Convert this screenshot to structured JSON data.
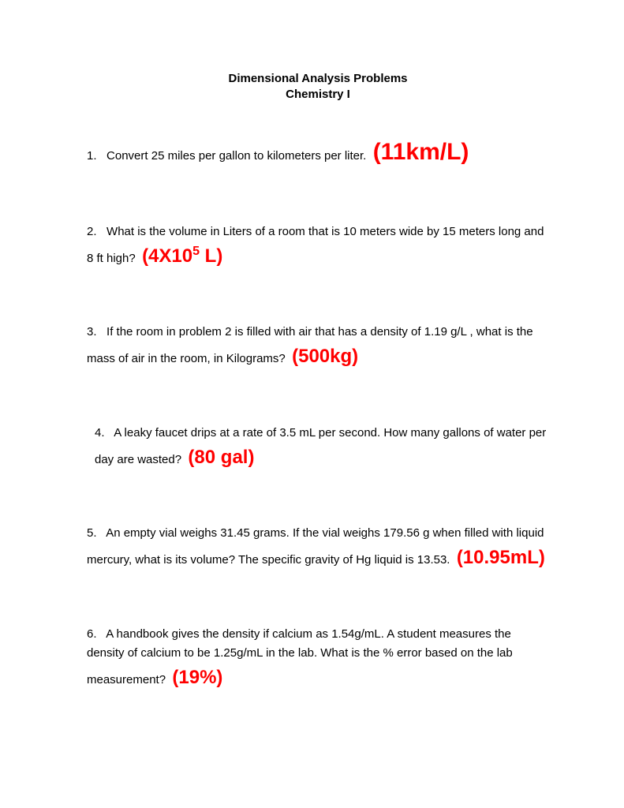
{
  "title_line1": "Dimensional Analysis Problems",
  "title_line2": "Chemistry I",
  "problems": {
    "p1": {
      "num": "1.",
      "text": "Convert 25 miles per gallon to kilometers per liter.",
      "answer": "(11km/L)"
    },
    "p2": {
      "num": "2.",
      "text_a": "What is the volume in Liters of a room that is 10 meters wide by 15 meters long and 8 ft high?",
      "answer_pre": "(4X10",
      "answer_sup": "5",
      "answer_post": " L)"
    },
    "p3": {
      "num": "3.",
      "text": "If the room in problem 2 is filled with air that has a density of 1.19 g/L , what is the mass of air in the room, in Kilograms?",
      "answer": "(500kg)"
    },
    "p4": {
      "num": "4.",
      "text": "A leaky faucet drips at a rate of 3.5 mL per second.  How many gallons of water per day are wasted?",
      "answer": "(80 gal)"
    },
    "p5": {
      "num": "5.",
      "text": "An empty vial weighs 31.45 grams.   If the vial weighs 179.56 g when filled with liquid mercury, what is its volume?   The specific gravity of Hg liquid is 13.53.",
      "answer": "(10.95mL)"
    },
    "p6": {
      "num": "6.",
      "text": "A handbook gives the density if calcium as 1.54g/mL.   A student measures the density of calcium to be 1.25g/mL in the lab.   What is the % error based on the lab measurement?",
      "answer": "(19%)"
    }
  },
  "colors": {
    "text": "#000000",
    "answer": "#ff0000",
    "background": "#ffffff"
  },
  "typography": {
    "body_fontsize": 15,
    "answer_fontsize": 24,
    "answer_large_fontsize": 30,
    "font_family": "Arial"
  }
}
